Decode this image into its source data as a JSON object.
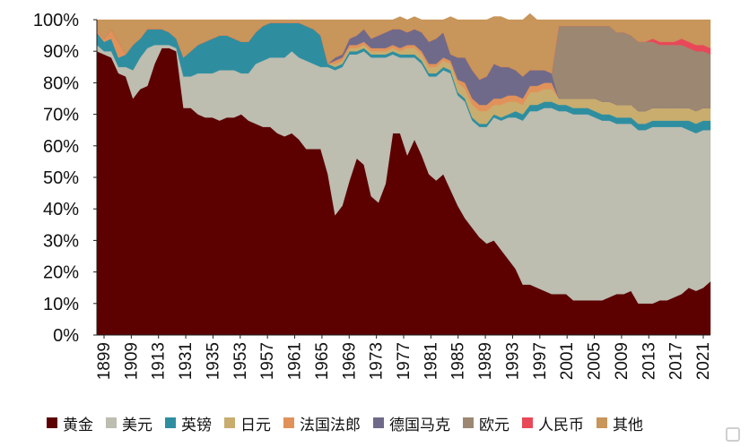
{
  "chart_data": {
    "type": "area",
    "stacked": true,
    "ylim": [
      0,
      100
    ],
    "y_tick_labels": [
      "0%",
      "10%",
      "20%",
      "30%",
      "40%",
      "50%",
      "60%",
      "70%",
      "80%",
      "90%",
      "100%"
    ],
    "x_tick_labels": [
      "1899",
      "1909",
      "1913",
      "1931",
      "1935",
      "1953",
      "1957",
      "1961",
      "1965",
      "1969",
      "1973",
      "1977",
      "1981",
      "1985",
      "1989",
      "1993",
      "1997",
      "2001",
      "2005",
      "2009",
      "2013",
      "2017",
      "2021"
    ],
    "x": [
      "1899",
      "1903",
      "1907",
      "1909",
      "1911",
      "1913",
      "1919",
      "1925",
      "1931",
      "1933",
      "1934",
      "1935",
      "1939",
      "1945",
      "1949",
      "1951",
      "1953",
      "1954",
      "1955",
      "1956",
      "1957",
      "1958",
      "1959",
      "1960",
      "1961",
      "1962",
      "1963",
      "1964",
      "1965",
      "1966",
      "1967",
      "1968",
      "1969",
      "1970",
      "1971",
      "1972",
      "1973",
      "1974",
      "1975",
      "1976",
      "1977",
      "1978",
      "1979",
      "1980",
      "1981",
      "1982",
      "1983",
      "1984",
      "1985",
      "1986",
      "1987",
      "1988",
      "1989",
      "1990",
      "1991",
      "1992",
      "1993",
      "1994",
      "1995",
      "1996",
      "1997",
      "1998",
      "1999",
      "2000",
      "2001",
      "2002",
      "2003",
      "2004",
      "2005",
      "2006",
      "2007",
      "2008",
      "2009",
      "2010",
      "2011",
      "2012",
      "2013",
      "2014",
      "2015",
      "2016",
      "2017",
      "2018",
      "2019",
      "2020",
      "2021",
      "2022"
    ],
    "series": [
      {
        "name": "黄金",
        "color": "#5c0000",
        "values": [
          90,
          89,
          88,
          83,
          82,
          75,
          78,
          79,
          86,
          91,
          91,
          90,
          72,
          72,
          70,
          69,
          69,
          68,
          69,
          69,
          70,
          68,
          67,
          66,
          66,
          64,
          63,
          64,
          62,
          59,
          59,
          59,
          51,
          38,
          41,
          49,
          56,
          54,
          44,
          42,
          48,
          64,
          64,
          57,
          62,
          57,
          51,
          49,
          51,
          46,
          41,
          37,
          34,
          31,
          29,
          30,
          27,
          24,
          21,
          16,
          16,
          15,
          14,
          13,
          13,
          13,
          11,
          11,
          11,
          11,
          11,
          12,
          13,
          13,
          14,
          10,
          10,
          10,
          11,
          11,
          12,
          13,
          15,
          14,
          15,
          17
        ]
      },
      {
        "name": "美元",
        "color": "#bdbdb0",
        "values": [
          2,
          1,
          2,
          2,
          3,
          9,
          10,
          12,
          6,
          1,
          1,
          1,
          10,
          10,
          13,
          14,
          14,
          16,
          15,
          15,
          13,
          15,
          19,
          21,
          22,
          24,
          25,
          26,
          26,
          28,
          27,
          26,
          34,
          46,
          44,
          40,
          33,
          36,
          44,
          46,
          40,
          25,
          24,
          31,
          26,
          29,
          31,
          33,
          33,
          37,
          35,
          37,
          34,
          35,
          37,
          39,
          41,
          45,
          48,
          52,
          55,
          56,
          58,
          59,
          58,
          58,
          59,
          59,
          59,
          58,
          57,
          56,
          54,
          54,
          53,
          55,
          55,
          56,
          55,
          55,
          54,
          53,
          50,
          50,
          50,
          48
        ]
      },
      {
        "name": "英镑",
        "color": "#2e8ea0",
        "values": [
          4,
          3,
          4,
          3,
          4,
          8,
          6,
          6,
          5,
          5,
          4,
          3,
          6,
          8,
          9,
          10,
          11,
          11,
          11,
          10,
          10,
          10,
          10,
          11,
          11,
          11,
          11,
          9,
          11,
          11,
          11,
          10,
          1,
          1,
          1,
          1,
          1,
          1,
          1,
          1,
          1,
          1,
          1,
          1,
          1,
          1,
          1,
          1,
          1,
          1,
          1,
          1,
          1,
          1,
          1,
          1,
          1,
          1,
          2,
          2,
          2,
          2,
          2,
          2,
          2,
          2,
          2,
          2,
          2,
          2,
          2,
          2,
          2,
          2,
          2,
          2,
          2,
          2,
          2,
          2,
          2,
          2,
          3,
          3,
          3,
          3
        ]
      },
      {
        "name": "日元",
        "color": "#c8ad6e",
        "values": [
          0,
          0,
          0,
          0,
          0,
          0,
          0,
          0,
          0,
          0,
          0,
          0,
          0,
          0,
          0,
          0,
          0,
          0,
          0,
          0,
          0,
          0,
          0,
          0,
          0,
          0,
          0,
          0,
          0,
          0,
          0,
          0,
          0,
          1,
          1,
          1,
          1,
          1,
          1,
          1,
          1,
          1,
          1,
          2,
          2,
          2,
          2,
          2,
          2,
          2,
          3,
          3,
          4,
          4,
          4,
          3,
          4,
          4,
          3,
          3,
          4,
          4,
          4,
          4,
          2,
          2,
          3,
          3,
          3,
          4,
          4,
          4,
          4,
          4,
          4,
          4,
          4,
          4,
          4,
          4,
          4,
          4,
          4,
          4,
          4,
          4
        ]
      },
      {
        "name": "法国法郎",
        "color": "#e0925a",
        "values": [
          1,
          1,
          3,
          5,
          0,
          0,
          0,
          0,
          0,
          0,
          0,
          0,
          0,
          0,
          0,
          0,
          0,
          0,
          0,
          0,
          0,
          0,
          0,
          0,
          0,
          0,
          0,
          0,
          0,
          0,
          0,
          0,
          0,
          1,
          1,
          1,
          1,
          1,
          1,
          1,
          1,
          1,
          1,
          1,
          1,
          1,
          1,
          1,
          1,
          1,
          1,
          2,
          2,
          2,
          2,
          2,
          2,
          2,
          2,
          2,
          2,
          2,
          2,
          2,
          0,
          0,
          0,
          0,
          0,
          0,
          0,
          0,
          0,
          0,
          0,
          0,
          0,
          0,
          0,
          0,
          0,
          0,
          0,
          0,
          0,
          0
        ]
      },
      {
        "name": "德国马克",
        "color": "#6f6a8a",
        "values": [
          0,
          0,
          0,
          0,
          0,
          0,
          0,
          0,
          0,
          0,
          0,
          0,
          0,
          0,
          0,
          0,
          0,
          0,
          0,
          0,
          0,
          0,
          0,
          0,
          0,
          0,
          0,
          0,
          0,
          0,
          0,
          0,
          0,
          1,
          1,
          2,
          3,
          4,
          3,
          4,
          5,
          5,
          6,
          4,
          5,
          6,
          7,
          8,
          8,
          2,
          7,
          8,
          9,
          8,
          9,
          11,
          10,
          9,
          8,
          7,
          5,
          5,
          4,
          3,
          0,
          0,
          0,
          0,
          0,
          0,
          0,
          0,
          0,
          0,
          0,
          0,
          0,
          0,
          0,
          0,
          0,
          0,
          0,
          0,
          0,
          0
        ]
      },
      {
        "name": "欧元",
        "color": "#9c8772",
        "values": [
          0,
          0,
          0,
          0,
          0,
          0,
          0,
          0,
          0,
          0,
          0,
          0,
          0,
          0,
          0,
          0,
          0,
          0,
          0,
          0,
          0,
          0,
          0,
          0,
          0,
          0,
          0,
          0,
          0,
          0,
          0,
          0,
          0,
          0,
          0,
          0,
          0,
          0,
          0,
          0,
          0,
          0,
          0,
          0,
          0,
          0,
          0,
          0,
          0,
          0,
          0,
          0,
          0,
          0,
          0,
          0,
          0,
          0,
          0,
          0,
          0,
          0,
          0,
          0,
          23,
          23,
          23,
          23,
          23,
          23,
          24,
          24,
          23,
          23,
          22,
          22,
          22,
          21,
          20,
          20,
          20,
          20,
          19,
          19,
          18,
          17
        ]
      },
      {
        "name": "人民币",
        "color": "#e84858",
        "values": [
          0,
          0,
          0,
          0,
          0,
          0,
          0,
          0,
          0,
          0,
          0,
          0,
          0,
          0,
          0,
          0,
          0,
          0,
          0,
          0,
          0,
          0,
          0,
          0,
          0,
          0,
          0,
          0,
          0,
          0,
          0,
          0,
          0,
          0,
          0,
          0,
          0,
          0,
          0,
          0,
          0,
          0,
          0,
          0,
          0,
          0,
          0,
          0,
          0,
          0,
          0,
          0,
          0,
          0,
          0,
          0,
          0,
          0,
          0,
          0,
          0,
          0,
          0,
          0,
          0,
          0,
          0,
          0,
          0,
          0,
          0,
          0,
          0,
          0,
          0,
          0,
          0,
          1,
          1,
          1,
          1,
          2,
          2,
          2,
          2,
          2
        ]
      },
      {
        "name": "其他",
        "color": "#c8955a",
        "values": [
          3,
          6,
          3,
          7,
          11,
          8,
          6,
          3,
          3,
          3,
          4,
          6,
          12,
          10,
          8,
          7,
          6,
          5,
          5,
          6,
          7,
          7,
          4,
          2,
          1,
          1,
          1,
          1,
          1,
          2,
          3,
          5,
          14,
          12,
          11,
          6,
          5,
          3,
          6,
          5,
          4,
          3,
          4,
          4,
          4,
          4,
          7,
          6,
          4,
          12,
          12,
          12,
          16,
          19,
          18,
          15,
          16,
          15,
          16,
          18,
          18,
          16,
          16,
          17,
          2,
          2,
          2,
          2,
          2,
          2,
          2,
          2,
          4,
          4,
          5,
          7,
          7,
          6,
          7,
          7,
          7,
          6,
          7,
          8,
          8,
          9
        ]
      }
    ]
  }
}
